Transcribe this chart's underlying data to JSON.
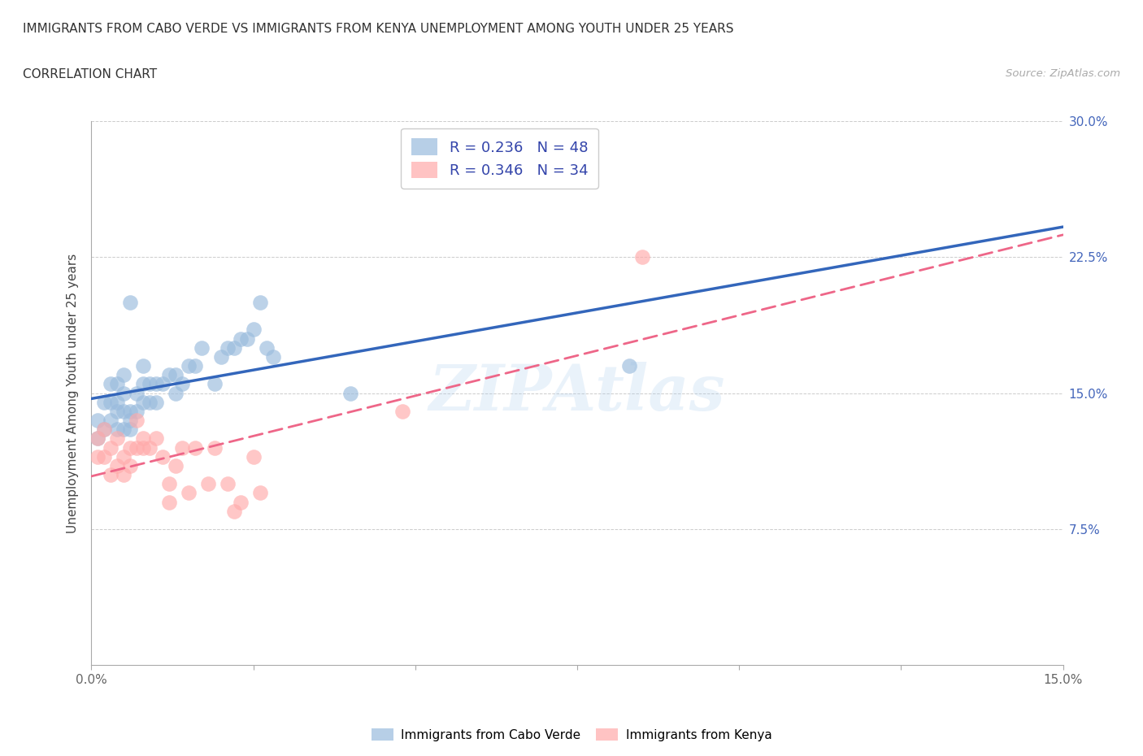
{
  "title_line1": "IMMIGRANTS FROM CABO VERDE VS IMMIGRANTS FROM KENYA UNEMPLOYMENT AMONG YOUTH UNDER 25 YEARS",
  "title_line2": "CORRELATION CHART",
  "source": "Source: ZipAtlas.com",
  "ylabel": "Unemployment Among Youth under 25 years",
  "xlim": [
    0,
    0.15
  ],
  "ylim": [
    0,
    0.3
  ],
  "xtick_positions": [
    0.0,
    0.025,
    0.05,
    0.075,
    0.1,
    0.125,
    0.15
  ],
  "xtick_labels": [
    "0.0%",
    "",
    "",
    "",
    "",
    "",
    "15.0%"
  ],
  "ytick_positions": [
    0.0,
    0.075,
    0.15,
    0.225,
    0.3
  ],
  "ytick_right_labels": [
    "",
    "7.5%",
    "15.0%",
    "22.5%",
    "30.0%"
  ],
  "cabo_verde_R": 0.236,
  "cabo_verde_N": 48,
  "kenya_R": 0.346,
  "kenya_N": 34,
  "cabo_verde_color": "#99BBDD",
  "kenya_color": "#FFAAAA",
  "cabo_verde_line_color": "#3366BB",
  "kenya_line_color": "#EE6688",
  "watermark": "ZIPAtlas",
  "cabo_verde_scatter_x": [
    0.001,
    0.001,
    0.002,
    0.002,
    0.003,
    0.003,
    0.003,
    0.004,
    0.004,
    0.004,
    0.004,
    0.005,
    0.005,
    0.005,
    0.005,
    0.006,
    0.006,
    0.006,
    0.006,
    0.007,
    0.007,
    0.008,
    0.008,
    0.008,
    0.009,
    0.009,
    0.01,
    0.01,
    0.011,
    0.012,
    0.013,
    0.013,
    0.014,
    0.015,
    0.016,
    0.017,
    0.019,
    0.02,
    0.021,
    0.022,
    0.023,
    0.024,
    0.025,
    0.026,
    0.027,
    0.028,
    0.04,
    0.083
  ],
  "cabo_verde_scatter_y": [
    0.135,
    0.125,
    0.145,
    0.13,
    0.135,
    0.145,
    0.155,
    0.13,
    0.14,
    0.145,
    0.155,
    0.13,
    0.14,
    0.15,
    0.16,
    0.13,
    0.135,
    0.14,
    0.2,
    0.14,
    0.15,
    0.145,
    0.155,
    0.165,
    0.145,
    0.155,
    0.145,
    0.155,
    0.155,
    0.16,
    0.15,
    0.16,
    0.155,
    0.165,
    0.165,
    0.175,
    0.155,
    0.17,
    0.175,
    0.175,
    0.18,
    0.18,
    0.185,
    0.2,
    0.175,
    0.17,
    0.15,
    0.165
  ],
  "kenya_scatter_x": [
    0.001,
    0.001,
    0.002,
    0.002,
    0.003,
    0.003,
    0.004,
    0.004,
    0.005,
    0.005,
    0.006,
    0.006,
    0.007,
    0.007,
    0.008,
    0.008,
    0.009,
    0.01,
    0.011,
    0.012,
    0.012,
    0.013,
    0.014,
    0.015,
    0.016,
    0.018,
    0.019,
    0.021,
    0.022,
    0.023,
    0.025,
    0.026,
    0.048,
    0.085
  ],
  "kenya_scatter_y": [
    0.115,
    0.125,
    0.115,
    0.13,
    0.105,
    0.12,
    0.11,
    0.125,
    0.105,
    0.115,
    0.11,
    0.12,
    0.12,
    0.135,
    0.125,
    0.12,
    0.12,
    0.125,
    0.115,
    0.09,
    0.1,
    0.11,
    0.12,
    0.095,
    0.12,
    0.1,
    0.12,
    0.1,
    0.085,
    0.09,
    0.115,
    0.095,
    0.14,
    0.225
  ]
}
